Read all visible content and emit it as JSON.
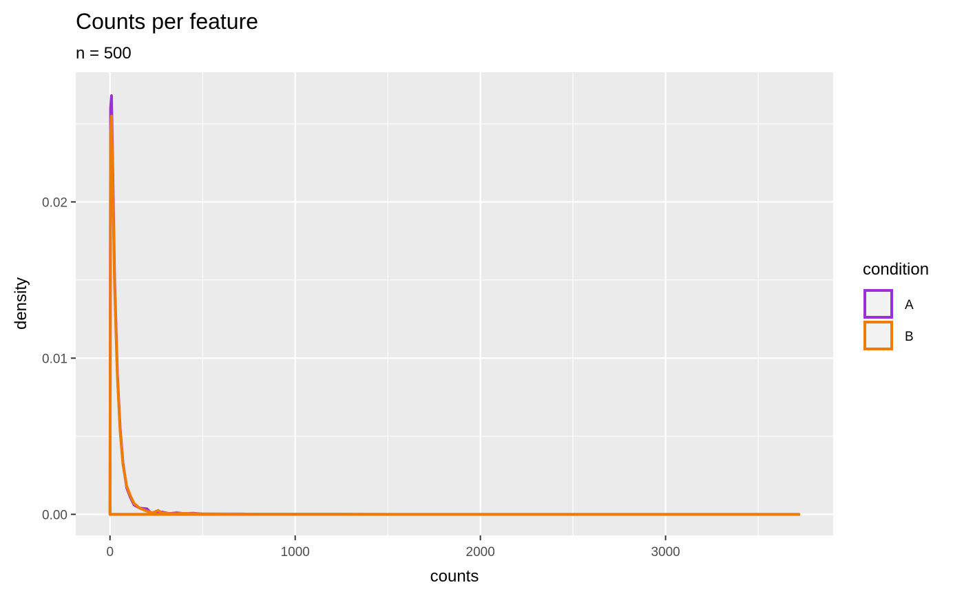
{
  "chart_data": {
    "type": "line",
    "title": "Counts per feature",
    "subtitle": "n = 500",
    "xlabel": "counts",
    "ylabel": "density",
    "xlim": [
      -185,
      3905
    ],
    "ylim": [
      -0.00135,
      0.0283
    ],
    "x_ticks": [
      0,
      1000,
      2000,
      3000
    ],
    "x_tick_labels": [
      "0",
      "1000",
      "2000",
      "3000"
    ],
    "y_ticks": [
      0.0,
      0.01,
      0.02
    ],
    "y_tick_labels": [
      "0.00",
      "0.01",
      "0.02"
    ],
    "grid": true,
    "legend_title": "condition",
    "legend_position": "right",
    "series": [
      {
        "name": "A",
        "color": "#9b30d9",
        "x": [
          0,
          3,
          8,
          15,
          25,
          40,
          55,
          70,
          90,
          110,
          130,
          160,
          200,
          220,
          250,
          280,
          320,
          360,
          400,
          450,
          500,
          600,
          700,
          800,
          1000,
          1200,
          1500,
          2000,
          2500,
          3000,
          3500,
          3720
        ],
        "y": [
          0.0,
          0.026,
          0.0268,
          0.022,
          0.015,
          0.009,
          0.0055,
          0.0033,
          0.0017,
          0.0011,
          0.0006,
          0.0004,
          0.00035,
          0.0001,
          0.0001,
          0.00015,
          5e-05,
          0.0001,
          5e-05,
          7e-05,
          3e-05,
          2e-05,
          2e-05,
          1e-05,
          1e-05,
          1e-05,
          0.0,
          0.0,
          0.0,
          0.0,
          0.0,
          0.0
        ]
      },
      {
        "name": "B",
        "color": "#f07c05",
        "x": [
          0,
          3,
          8,
          15,
          25,
          40,
          55,
          70,
          90,
          110,
          130,
          160,
          200,
          230,
          260,
          280,
          320,
          360,
          400,
          450,
          500,
          600,
          700,
          800,
          1000,
          1200,
          1500,
          2000,
          2500,
          3000,
          3500,
          3720
        ],
        "y": [
          0.0,
          0.0245,
          0.0255,
          0.021,
          0.0145,
          0.0088,
          0.0053,
          0.0032,
          0.0018,
          0.0012,
          0.0007,
          0.0004,
          0.0002,
          0.0001,
          0.00025,
          0.0001,
          5e-05,
          4e-05,
          6e-05,
          4e-05,
          3e-05,
          2e-05,
          1e-05,
          1e-05,
          1e-05,
          1e-05,
          0.0,
          0.0,
          0.0,
          0.0,
          0.0,
          0.0
        ]
      }
    ]
  }
}
